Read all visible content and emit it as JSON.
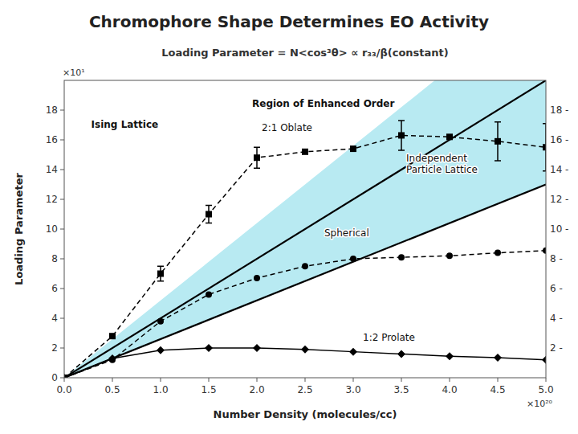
{
  "chart_data": {
    "type": "line",
    "title": "Chromophore Shape Determines EO Activity",
    "subtitle": "Loading Parameter = N<cos³θ> ∝ r₃₃/β(constant)",
    "x_label": "Number Density (molecules/cc)",
    "y_label": "Loading Parameter",
    "xlim": [
      0,
      5
    ],
    "ylim": [
      0,
      20
    ],
    "xticks": [
      {
        "value": 0,
        "label": "0.0"
      },
      0.5,
      {
        "value": 1,
        "label": "1.0"
      },
      1.5,
      {
        "value": 2,
        "label": "2.0"
      },
      2.5,
      {
        "value": 3,
        "label": "3.0"
      },
      3.5,
      {
        "value": 4,
        "label": "4.0"
      },
      4.5,
      {
        "value": 5,
        "label": "5.0"
      }
    ],
    "yticks": [
      0,
      2,
      4,
      6,
      8,
      10,
      12,
      14,
      16,
      18
    ],
    "y2lim": [
      0,
      20
    ],
    "y2ticks": [
      {
        "value": 2,
        "label": "2 -"
      },
      {
        "value": 4,
        "label": "4 -"
      },
      {
        "value": 6,
        "label": "6 -"
      },
      {
        "value": 8,
        "label": "8 -"
      },
      {
        "value": 10,
        "label": "10 -"
      },
      {
        "value": 12,
        "label": "12 -"
      },
      {
        "value": 14,
        "label": "14 -"
      },
      {
        "value": 16,
        "label": "16 -"
      },
      {
        "value": 18,
        "label": "18 -"
      }
    ],
    "series": [
      {
        "type": "area",
        "color": "#b8eaf2",
        "x": [
          0,
          5,
          5,
          3.8461538461538463,
          0
        ],
        "values": [
          0,
          13,
          20,
          20,
          0
        ]
      },
      {
        "type": "line",
        "color": "#000000",
        "line_style": "solid",
        "x": [
          0,
          5
        ],
        "values": [
          0,
          20
        ]
      },
      {
        "type": "line",
        "color": "#000000",
        "line_style": "solid",
        "x": [
          0,
          5
        ],
        "values": [
          0,
          13
        ]
      },
      {
        "type": "line",
        "color": "#000000",
        "line_style": "dashed",
        "marker": "square",
        "x": [
          0.0,
          0.5,
          1.0,
          1.5,
          2.0,
          2.5,
          3.0,
          3.5,
          4.0,
          4.5,
          5.0
        ],
        "values": [
          0.0,
          2.8,
          7.0,
          11.0,
          14.8,
          15.2,
          15.4,
          16.3,
          16.2,
          15.9,
          15.5
        ],
        "errors": [
          0,
          0,
          0.5,
          0.6,
          0.7,
          0,
          0,
          1.0,
          0,
          1.3,
          1.6
        ]
      },
      {
        "type": "line",
        "color": "#000000",
        "line_style": "dashed",
        "marker": "circle",
        "x": [
          0.0,
          0.5,
          1.0,
          1.5,
          2.0,
          2.5,
          3.0,
          3.5,
          4.0,
          4.5,
          5.0
        ],
        "values": [
          0.0,
          1.2,
          3.8,
          5.6,
          6.7,
          7.5,
          8.0,
          8.1,
          8.2,
          8.4,
          8.55
        ]
      },
      {
        "type": "line",
        "color": "#000000",
        "line_style": "solid",
        "marker": "diamond",
        "x": [
          0.0,
          0.5,
          1.0,
          1.5,
          2.0,
          2.5,
          3.0,
          3.5,
          4.0,
          4.5,
          5.0
        ],
        "values": [
          0.0,
          1.3,
          1.85,
          2.0,
          2.0,
          1.9,
          1.75,
          1.6,
          1.45,
          1.35,
          1.2
        ]
      }
    ],
    "annotations": [
      {
        "text": "Region of Enhanced Order"
      },
      {
        "text": "Ising Lattice"
      },
      {
        "text": "2:1 Oblate"
      },
      {
        "text": "Spherical"
      },
      {
        "text": "1:2 Prolate"
      },
      {
        "text": "Independent\nParticle Lattice"
      },
      {
        "text": "×10¹"
      },
      {
        "text": "×10²⁰"
      }
    ]
  }
}
